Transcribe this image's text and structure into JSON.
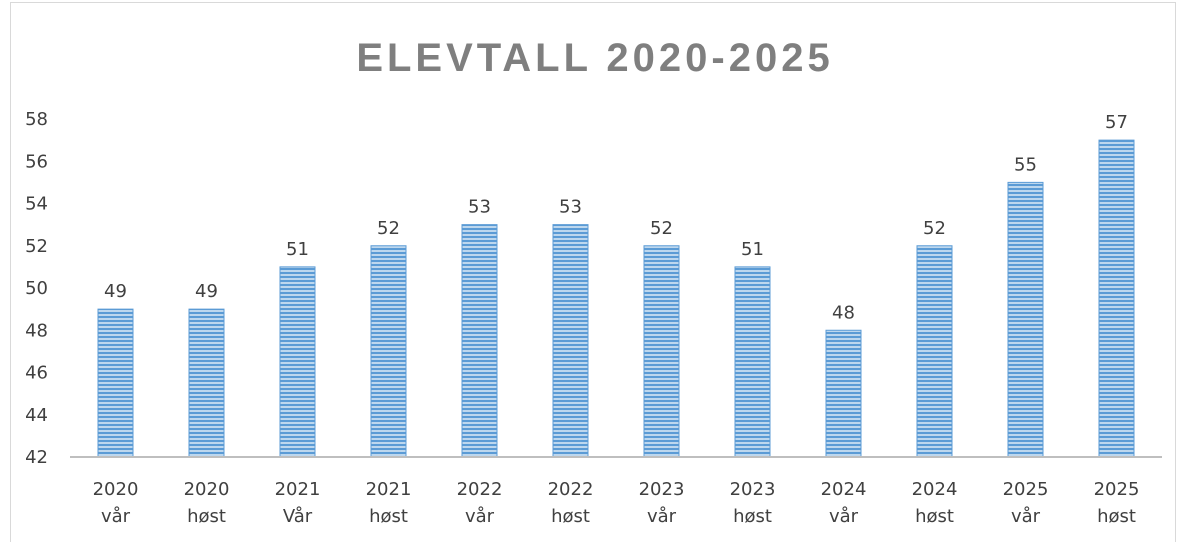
{
  "chart_data": {
    "type": "bar",
    "title": "ELEVTALL 2020-2025",
    "categories": [
      [
        "2020",
        "vår"
      ],
      [
        "2020",
        "høst"
      ],
      [
        "2021",
        "Vår"
      ],
      [
        "2021",
        "høst"
      ],
      [
        "2022",
        "vår"
      ],
      [
        "2022",
        "høst"
      ],
      [
        "2023",
        "vår"
      ],
      [
        "2023",
        "høst"
      ],
      [
        "2024",
        "vår"
      ],
      [
        "2024",
        "høst"
      ],
      [
        "2025",
        "vår"
      ],
      [
        "2025",
        "høst"
      ]
    ],
    "values": [
      49,
      49,
      51,
      52,
      53,
      53,
      52,
      51,
      48,
      52,
      55,
      57
    ],
    "ylim": [
      42,
      58
    ],
    "yticks": [
      "42",
      "44",
      "46",
      "48",
      "50",
      "52",
      "54",
      "56",
      "58"
    ],
    "grid": false,
    "legend": "none",
    "bar_color": "#5b9bd5",
    "bar_stripe_color": "#bdd7ee",
    "axis_color": "#bfbfbf"
  }
}
